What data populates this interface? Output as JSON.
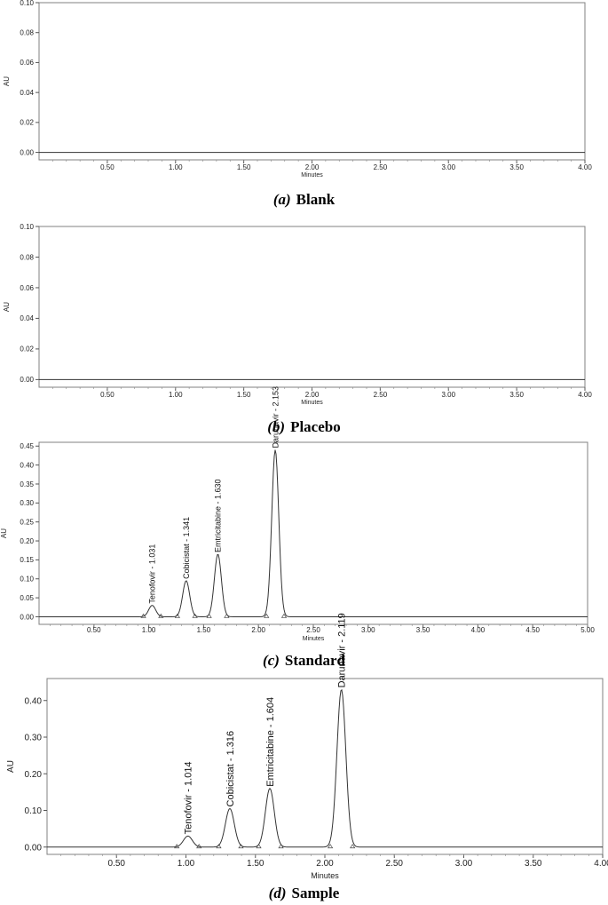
{
  "chart_data": [
    {
      "type": "line",
      "ylabel": "AU",
      "xlabel": "Minutes",
      "xlim": [
        0,
        4.0
      ],
      "ylim": [
        -0.005,
        0.1
      ],
      "xticks": [
        "0.50",
        "1.00",
        "1.50",
        "2.00",
        "2.50",
        "3.00",
        "3.50",
        "4.00"
      ],
      "yticks": [
        "0.00",
        "0.02",
        "0.04",
        "0.06",
        "0.08",
        "0.10"
      ],
      "baseline": 0.0,
      "peaks": [],
      "caption": {
        "label": "(a)",
        "text": "Blank"
      }
    },
    {
      "type": "line",
      "ylabel": "AU",
      "xlabel": "Minutes",
      "xlim": [
        0,
        4.0
      ],
      "ylim": [
        -0.005,
        0.1
      ],
      "xticks": [
        "0.50",
        "1.00",
        "1.50",
        "2.00",
        "2.50",
        "3.00",
        "3.50",
        "4.00"
      ],
      "yticks": [
        "0.00",
        "0.02",
        "0.04",
        "0.06",
        "0.08",
        "0.10"
      ],
      "baseline": 0.0,
      "peaks": [],
      "caption": {
        "label": "(b)",
        "text": "Placebo"
      }
    },
    {
      "type": "line",
      "ylabel": "AU",
      "xlabel": "Minutes",
      "xlim": [
        0,
        5.0
      ],
      "ylim": [
        -0.02,
        0.46
      ],
      "xticks": [
        "0.50",
        "1.00",
        "1.50",
        "2.00",
        "2.50",
        "3.00",
        "3.50",
        "4.00",
        "4.50",
        "5.00"
      ],
      "yticks": [
        "0.00",
        "0.05",
        "0.10",
        "0.15",
        "0.20",
        "0.25",
        "0.30",
        "0.35",
        "0.40",
        "0.45"
      ],
      "baseline": 0.0,
      "peaks": [
        {
          "name": "Tenofovir",
          "rt": 1.031,
          "height": 0.03,
          "label": "Tenofovir - 1.031"
        },
        {
          "name": "Cobicistat",
          "rt": 1.341,
          "height": 0.095,
          "label": "Cobicistat - 1.341"
        },
        {
          "name": "Emtricitabine",
          "rt": 1.63,
          "height": 0.165,
          "label": "Emtricitabine - 1.630"
        },
        {
          "name": "Darunavir",
          "rt": 2.153,
          "height": 0.44,
          "label": "Darunavir - 2.153"
        }
      ],
      "caption": {
        "label": "(c)",
        "text": "Standard"
      }
    },
    {
      "type": "line",
      "ylabel": "AU",
      "xlabel": "Minutes",
      "xlim": [
        0,
        4.0
      ],
      "ylim": [
        -0.02,
        0.46
      ],
      "xticks": [
        "0.50",
        "1.00",
        "1.50",
        "2.00",
        "2.50",
        "3.00",
        "3.50",
        "4.00"
      ],
      "yticks": [
        "0.00",
        "0.10",
        "0.20",
        "0.30",
        "0.40"
      ],
      "baseline": 0.0,
      "peaks": [
        {
          "name": "Tenofovir",
          "rt": 1.014,
          "height": 0.03,
          "label": "Tenofovir - 1.014"
        },
        {
          "name": "Cobicistat",
          "rt": 1.316,
          "height": 0.105,
          "label": "Cobicistat - 1.316"
        },
        {
          "name": "Emtricitabine",
          "rt": 1.604,
          "height": 0.16,
          "label": "Emtricitabine - 1.604"
        },
        {
          "name": "Darunavir",
          "rt": 2.119,
          "height": 0.43,
          "label": "Darunavir - 2.119"
        }
      ],
      "caption": {
        "label": "(d)",
        "text": "Sample"
      }
    }
  ]
}
